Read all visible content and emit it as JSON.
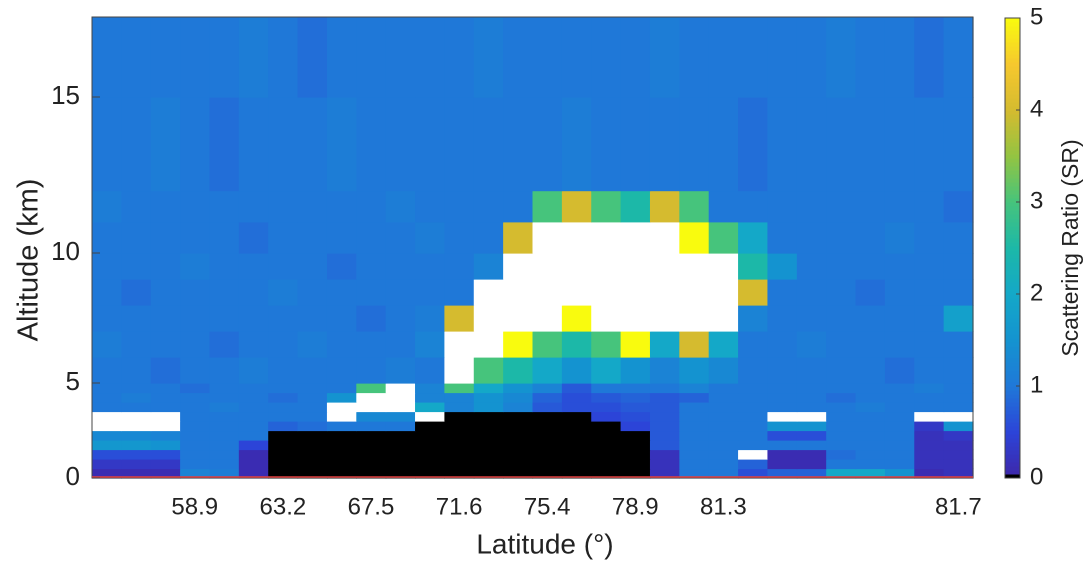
{
  "chart_data": {
    "type": "heatmap",
    "xlabel": "Latitude (°)",
    "ylabel": "Altitude (km)",
    "categories": [
      null,
      null,
      null,
      "58.9",
      null,
      null,
      "63.2",
      null,
      null,
      "67.5",
      null,
      null,
      "71.6",
      null,
      null,
      "75.4",
      null,
      null,
      "78.9",
      null,
      null,
      "81.3",
      null,
      null,
      null,
      null,
      null,
      null,
      null,
      "81.7"
    ],
    "ylim": [
      0,
      17.6
    ],
    "yticks": [
      0,
      5,
      10,
      15
    ],
    "y_edges": [
      0,
      0.5,
      1,
      1.5,
      2,
      2.5,
      3,
      3.5,
      4,
      4.5,
      5,
      6,
      7,
      8,
      9,
      10,
      11,
      12,
      15,
      17.6
    ],
    "z": [
      [
        0.1,
        0.1,
        0.1,
        1.2,
        1.1,
        0.1,
        0,
        0,
        0,
        0,
        0,
        0,
        0,
        0,
        0,
        0,
        0,
        0,
        0,
        0.2,
        1,
        1,
        0.6,
        0.8,
        0.8,
        2,
        2,
        1.5,
        0.1,
        0.2
      ],
      [
        0.3,
        0.3,
        0.3,
        1,
        1,
        0.1,
        0,
        0,
        0,
        0,
        0,
        0,
        0,
        0,
        0,
        0,
        0,
        0,
        0,
        0.2,
        1,
        1,
        0.8,
        0.1,
        0.1,
        1,
        1,
        1,
        0.2,
        0.2
      ],
      [
        0.6,
        0.6,
        0.6,
        1,
        1,
        0.1,
        0,
        0,
        0,
        0,
        0,
        0,
        0,
        0,
        0,
        0,
        0,
        0,
        0,
        0.2,
        1,
        1,
        8,
        0.1,
        0.1,
        0.9,
        1,
        1,
        0.2,
        0.2
      ],
      [
        1.6,
        1.6,
        1.5,
        1,
        1,
        0.5,
        0,
        0,
        0,
        0,
        0,
        0,
        0,
        0,
        0,
        0,
        0,
        0,
        0,
        0.7,
        1,
        1,
        1,
        1,
        1,
        1,
        1,
        1,
        0.2,
        0.2
      ],
      [
        1.3,
        1.3,
        1.2,
        1,
        1,
        1,
        0,
        0,
        0,
        0,
        0,
        0,
        0,
        0,
        0,
        0,
        0,
        0,
        0,
        0.7,
        1,
        1,
        1,
        0.6,
        0.6,
        1,
        1,
        1,
        0.2,
        0.3
      ],
      [
        8,
        8,
        8,
        1,
        1,
        1,
        0.8,
        0.9,
        1,
        1,
        1,
        0,
        0,
        0,
        0,
        0,
        0,
        0,
        0.5,
        0.7,
        1,
        1,
        1,
        1.5,
        1.5,
        1,
        1,
        1,
        0.3,
        1.5
      ],
      [
        8,
        8,
        8,
        1,
        1,
        1,
        1,
        1,
        8,
        1.3,
        1.3,
        8,
        0,
        0,
        0,
        0,
        0,
        0.5,
        0.6,
        0.7,
        1,
        1,
        1,
        8,
        8,
        1,
        1,
        1,
        8,
        8
      ],
      [
        1,
        1,
        1,
        1,
        1.1,
        1,
        1,
        1,
        8,
        8,
        8,
        2,
        1.2,
        1.5,
        1.2,
        0.7,
        0.6,
        0.6,
        0.7,
        0.7,
        1,
        1,
        1,
        1,
        1,
        1,
        1.1,
        1,
        1,
        1
      ],
      [
        1,
        1.1,
        1,
        1,
        1,
        1,
        0.9,
        1,
        1.5,
        8,
        8,
        1.2,
        1.2,
        1.5,
        1.3,
        0.8,
        0.6,
        0.7,
        0.8,
        0.7,
        0.8,
        1,
        1,
        1,
        1,
        0.9,
        1,
        1,
        1,
        1
      ],
      [
        1,
        1,
        1,
        0.9,
        1,
        1,
        1,
        1,
        1,
        3,
        8,
        1.2,
        3,
        2,
        1.5,
        1.2,
        0.7,
        1,
        1,
        1,
        1.2,
        1,
        1,
        1,
        1,
        1,
        1,
        1,
        1.1,
        1
      ],
      [
        1,
        1,
        0.9,
        1,
        1,
        1.1,
        1,
        1,
        1,
        1,
        1.1,
        1,
        8,
        3,
        2.5,
        2,
        1.5,
        2,
        1.5,
        1.2,
        1.5,
        1.3,
        1,
        1,
        1,
        1,
        1,
        0.9,
        1,
        1
      ],
      [
        1.1,
        1,
        1,
        1,
        0.9,
        1,
        1,
        1.1,
        1,
        1,
        1,
        1.2,
        8,
        8,
        5,
        3,
        2.5,
        3,
        5,
        2,
        4,
        2,
        1,
        1,
        1.1,
        1,
        1,
        1,
        1,
        1
      ],
      [
        1,
        1,
        1,
        1,
        1,
        1,
        1,
        1,
        1,
        0.9,
        1,
        1.1,
        4,
        8,
        8,
        6,
        5,
        8,
        8,
        8,
        8,
        8,
        1.2,
        1,
        1,
        1,
        1,
        1,
        1,
        1.8
      ],
      [
        1,
        0.9,
        1,
        1,
        1,
        1,
        1.1,
        1,
        1,
        1,
        1,
        1,
        1,
        8,
        8,
        8,
        8,
        8,
        8,
        8,
        8,
        8,
        4,
        1,
        1,
        1,
        0.9,
        1,
        1,
        1
      ],
      [
        1,
        1,
        1,
        1.1,
        1,
        1,
        1,
        1,
        0.9,
        1,
        1,
        1,
        1,
        1.2,
        8,
        8,
        8,
        8,
        8,
        8,
        8,
        6,
        2.5,
        1.5,
        1,
        1,
        1,
        1,
        1,
        1
      ],
      [
        1,
        1,
        1,
        1,
        1,
        0.9,
        1,
        1,
        1,
        1,
        1,
        1.1,
        1,
        1,
        4,
        8,
        8,
        8,
        8,
        6,
        5,
        3,
        2,
        1,
        1,
        1,
        1,
        1.1,
        1,
        1
      ],
      [
        1.1,
        1,
        1,
        1,
        1,
        1,
        1,
        1,
        1,
        1,
        1.1,
        1,
        1,
        1,
        1,
        3,
        4,
        3,
        2.5,
        4,
        3,
        1,
        1,
        1,
        1,
        1,
        1,
        1,
        1,
        0.9
      ],
      [
        1,
        1,
        1.1,
        1,
        0.9,
        1,
        1,
        1,
        1.1,
        1,
        1,
        1,
        1,
        1,
        1,
        1,
        1.1,
        1,
        1,
        1,
        1,
        1,
        0.9,
        1,
        1,
        1,
        1,
        1,
        1,
        1
      ],
      [
        1,
        1,
        1,
        1,
        1,
        1.1,
        1,
        0.9,
        1,
        1,
        1,
        1,
        1,
        1.1,
        1,
        1,
        1,
        1,
        1,
        1.1,
        1,
        1,
        1,
        1,
        1,
        1.1,
        1,
        1,
        0.9,
        1
      ]
    ],
    "colorbar": {
      "label": "Scattering Ratio (SR)",
      "clim": [
        0,
        5
      ],
      "ticks": [
        0,
        1,
        2,
        3,
        4,
        5
      ]
    },
    "colormap": [
      "#3e26a8",
      "#2c44d8",
      "#1f78d8",
      "#1493d0",
      "#14a8c8",
      "#1cb8a8",
      "#46c47c",
      "#93c442",
      "#d5bb2f",
      "#f6c82e",
      "#f9fb0e"
    ],
    "under_color": "#000000",
    "over_color": "#ffffff"
  }
}
